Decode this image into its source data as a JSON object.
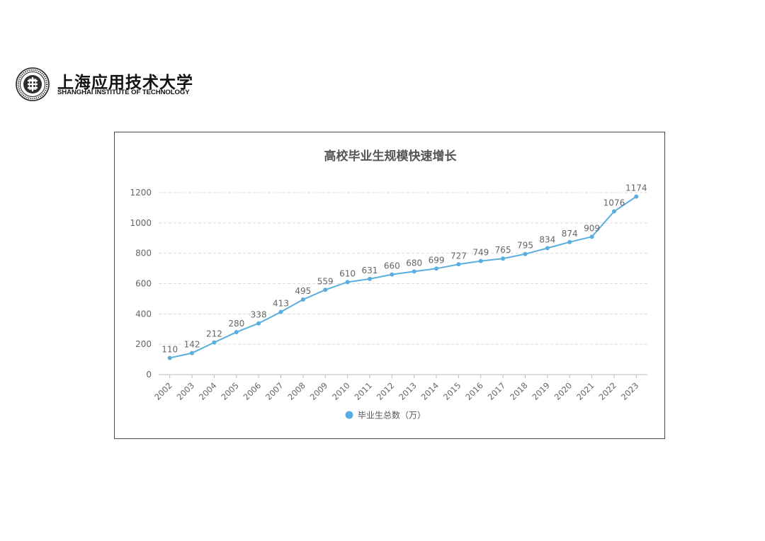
{
  "header": {
    "school_name_cn": "上海应用技术大学",
    "school_name_en": "SHANGHAI INSTITUTE OF TECHNOLOGY"
  },
  "colors": {
    "series": "#5aaedf",
    "grid": "#dcdcdc",
    "axis_text": "#666666",
    "title": "#555555"
  },
  "chart_data": {
    "type": "line",
    "title": "高校毕业生规模快速增长",
    "x": [
      "2002",
      "2003",
      "2004",
      "2005",
      "2006",
      "2007",
      "2008",
      "2009",
      "2010",
      "2011",
      "2012",
      "2013",
      "2014",
      "2015",
      "2016",
      "2017",
      "2018",
      "2019",
      "2020",
      "2021",
      "2022",
      "2023"
    ],
    "series": [
      {
        "name": "毕业生总数（万）",
        "values": [
          110,
          142,
          212,
          280,
          338,
          413,
          495,
          559,
          610,
          631,
          660,
          680,
          699,
          727,
          749,
          765,
          795,
          834,
          874,
          909,
          1076,
          1174
        ]
      }
    ],
    "yticks": [
      "0",
      "200",
      "400",
      "600",
      "800",
      "1000",
      "1200"
    ],
    "ylim": [
      0,
      1200
    ],
    "grid": true,
    "legend": "bottom-center",
    "xlabel": "",
    "ylabel": ""
  }
}
